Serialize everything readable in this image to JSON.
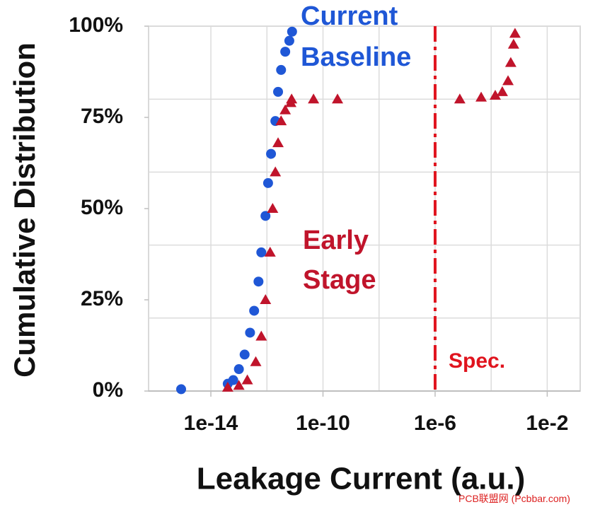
{
  "chart_data": {
    "type": "scatter",
    "xlabel": "Leakage Current (a.u.)",
    "ylabel": "Cumulative Distribution",
    "xscale": "log",
    "xlim": [
      6e-17,
      0.15
    ],
    "ylim": [
      0,
      100
    ],
    "xticks": [
      1e-14,
      1e-10,
      {
        "value": 1e-06,
        "label": "1e-6"
      },
      {
        "value": 0.01,
        "label": "1e-2"
      }
    ],
    "yticks": [
      {
        "value": 0,
        "label": "0%"
      },
      {
        "value": 25,
        "label": "25%"
      },
      {
        "value": 50,
        "label": "50%"
      },
      {
        "value": 75,
        "label": "75%"
      },
      {
        "value": 100,
        "label": "100%"
      }
    ],
    "xgrid": [
      1e-14,
      1e-12,
      1e-10,
      1e-08,
      1e-06,
      0.0001,
      0.01
    ],
    "ygrid": [
      20,
      40,
      60,
      80,
      100
    ],
    "grid": true,
    "series": [
      {
        "name": "Current Baseline",
        "color": "#1f57d6",
        "marker": "circle",
        "x": [
          8.7e-16,
          4e-14,
          6.3e-14,
          1e-13,
          1.6e-13,
          2.5e-13,
          3.5e-13,
          5e-13,
          6.3e-13,
          8.9e-13,
          1.1e-12,
          1.4e-12,
          2e-12,
          2.5e-12,
          3.2e-12,
          4.5e-12,
          6.3e-12,
          7.9e-12
        ],
        "values": [
          0.5,
          2,
          3,
          6,
          10,
          16,
          22,
          30,
          38,
          48,
          57,
          65,
          74,
          82,
          88,
          93,
          96,
          98.5
        ]
      },
      {
        "name": "Early Stage",
        "color": "#c0142b",
        "marker": "triangle",
        "x": [
          4e-14,
          1e-13,
          2e-13,
          4e-13,
          6.3e-13,
          8.9e-13,
          1.3e-12,
          1.6e-12,
          2e-12,
          2.5e-12,
          3.2e-12,
          4.5e-12,
          7.1e-12,
          7.6e-12,
          4.6e-11,
          3.3e-10,
          7.6e-06,
          4.4e-05,
          0.00014,
          0.00025,
          0.0004,
          0.0005,
          0.00063,
          0.00071
        ],
        "values": [
          1,
          1.5,
          3,
          8,
          15,
          25,
          38,
          50,
          60,
          68,
          74,
          77,
          79,
          80,
          80,
          80,
          80,
          80.5,
          81,
          82,
          85,
          90,
          95,
          98
        ]
      }
    ],
    "spec": {
      "x": 1e-06,
      "label": "Spec.",
      "color": "#e0141e"
    },
    "watermark": "PCB联盟网 (Pcbbar.com)"
  }
}
